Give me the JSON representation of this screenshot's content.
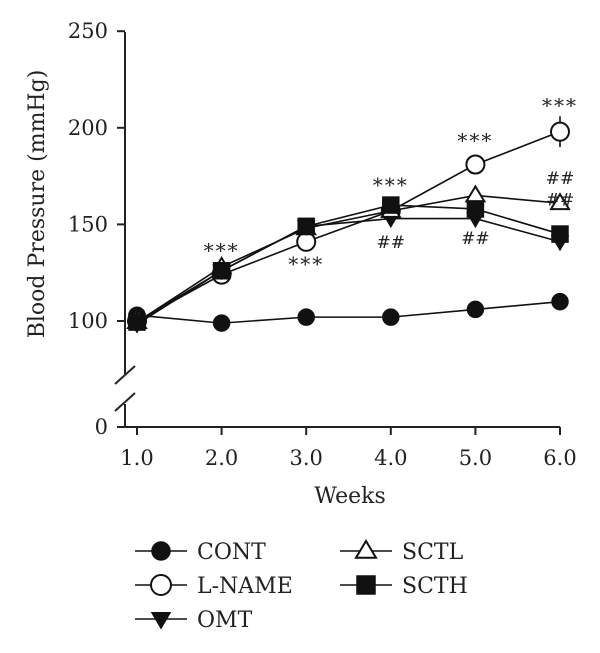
{
  "chart_data": {
    "type": "line",
    "title": "",
    "xlabel": "Weeks",
    "ylabel": "Blood Pressure (mmHg)",
    "x": [
      "1.0",
      "2.0",
      "3.0",
      "4.0",
      "5.0",
      "6.0"
    ],
    "xlim": [
      1.0,
      6.0
    ],
    "y_ticks": [
      "250",
      "200",
      "150",
      "100",
      "0"
    ],
    "y_axis_break": [
      0,
      100
    ],
    "ylim": [
      0,
      250
    ],
    "grid": false,
    "legend_position": "bottom",
    "series": [
      {
        "name": "CONT",
        "marker": "filled-circle",
        "values": [
          103,
          98,
          102,
          102,
          106,
          110
        ]
      },
      {
        "name": "L-NAME",
        "marker": "open-circle",
        "values": [
          100,
          124,
          141,
          157,
          181,
          198
        ],
        "error_last": 8
      },
      {
        "name": "OMT",
        "marker": "filled-triangle-down",
        "values": [
          97,
          126,
          149,
          153,
          153,
          141
        ]
      },
      {
        "name": "SCTL",
        "marker": "open-triangle-up",
        "values": [
          99,
          128,
          148,
          157,
          165,
          161
        ]
      },
      {
        "name": "SCTH",
        "marker": "filled-square",
        "values": [
          99,
          126,
          149,
          160,
          158,
          145
        ]
      }
    ],
    "annotations": [
      {
        "x": 2.0,
        "y": 137,
        "text": "***"
      },
      {
        "x": 3.0,
        "y": 130,
        "text": "***"
      },
      {
        "x": 4.0,
        "y": 171,
        "text": "***"
      },
      {
        "x": 4.0,
        "y": 142,
        "text": "##"
      },
      {
        "x": 5.0,
        "y": 194,
        "text": "***"
      },
      {
        "x": 5.0,
        "y": 144,
        "text": "##"
      },
      {
        "x": 6.0,
        "y": 212,
        "text": "***"
      },
      {
        "x": 6.0,
        "y": 175,
        "text": "##"
      },
      {
        "x": 6.0,
        "y": 164,
        "text": "##"
      }
    ]
  }
}
